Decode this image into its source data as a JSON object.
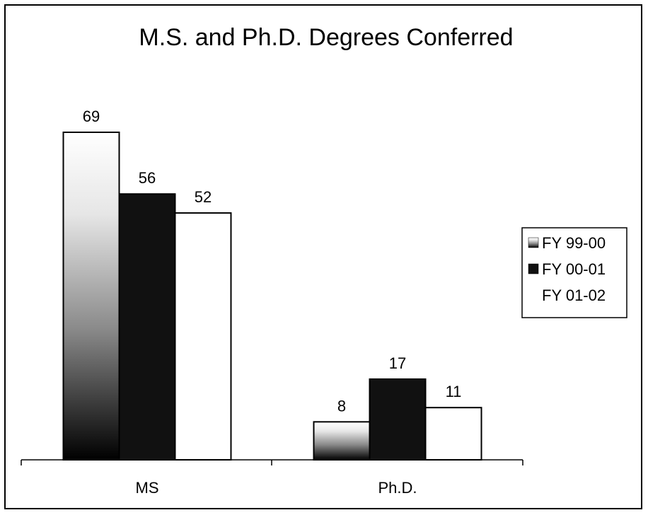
{
  "chart_data": {
    "type": "bar",
    "title": "M.S. and Ph.D. Degrees Conferred",
    "xlabel": "",
    "ylabel": "",
    "categories": [
      "MS",
      "Ph.D."
    ],
    "series": [
      {
        "name": "FY 99-00",
        "values": [
          69,
          8
        ],
        "fill": "gradient-white-to-black"
      },
      {
        "name": "FY 00-01",
        "values": [
          56,
          17
        ],
        "fill": "#111111"
      },
      {
        "name": "FY 01-02",
        "values": [
          52,
          11
        ],
        "fill": "#ffffff"
      }
    ],
    "ylim": [
      0,
      69
    ],
    "grid": false,
    "data_labels": true,
    "legend": "right"
  }
}
